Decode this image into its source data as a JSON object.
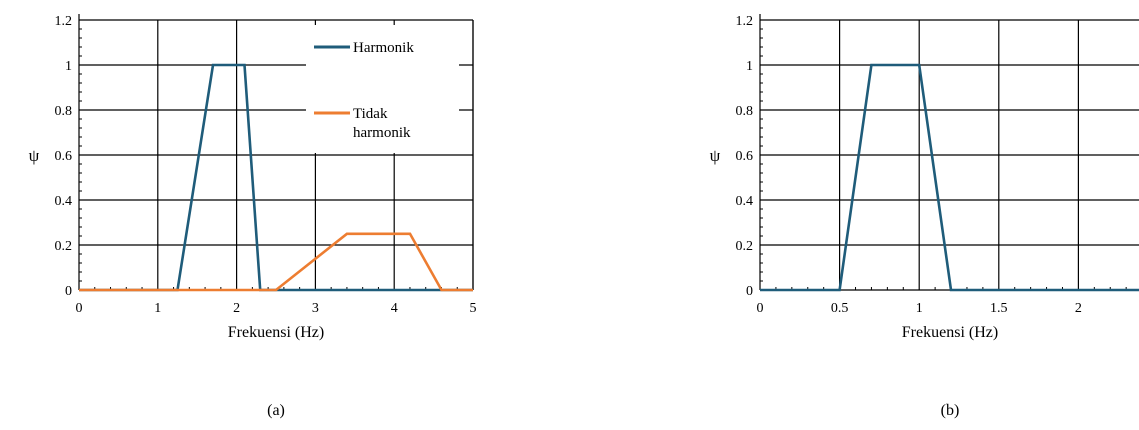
{
  "chart_data": [
    {
      "type": "line",
      "panel_label": "(a)",
      "xlabel": "Frekuensi (Hz)",
      "ylabel": "ψ",
      "xlim": [
        0,
        5
      ],
      "ylim": [
        0,
        1.2
      ],
      "x_ticks": [
        0,
        1,
        2,
        3,
        4,
        5
      ],
      "x_tick_labels": [
        "0",
        "1",
        "2",
        "3",
        "4",
        "5"
      ],
      "y_ticks": [
        0,
        0.2,
        0.4,
        0.6,
        0.8,
        1,
        1.2
      ],
      "y_tick_labels": [
        "0",
        "0.2",
        "0.4",
        "0.6",
        "0.8",
        "1",
        "1.2"
      ],
      "grid": true,
      "legend": "top-right",
      "series": [
        {
          "name": "Harmonik",
          "color": "#1f5c7a",
          "x": [
            0,
            1.25,
            1.7,
            2.1,
            2.3,
            5
          ],
          "y": [
            0,
            0,
            1,
            1,
            0,
            0
          ]
        },
        {
          "name": "Tidak harmonik",
          "legend_lines": [
            "Tidak",
            "harmonik"
          ],
          "color": "#ed7d31",
          "x": [
            0,
            2.5,
            3.4,
            4.2,
            4.6,
            5
          ],
          "y": [
            0,
            0,
            0.25,
            0.25,
            0,
            0
          ]
        }
      ]
    },
    {
      "type": "line",
      "panel_label": "(b)",
      "xlabel": "Frekuensi (Hz)",
      "ylabel": "ψ",
      "xlim": [
        0,
        2.5
      ],
      "ylim": [
        0,
        1.2
      ],
      "x_ticks": [
        0,
        0.5,
        1,
        1.5,
        2
      ],
      "x_tick_labels": [
        "0",
        "0.5",
        "1",
        "1.5",
        "2"
      ],
      "y_ticks": [
        0,
        0.2,
        0.4,
        0.6,
        0.8,
        1,
        1.2
      ],
      "y_tick_labels": [
        "0",
        "0.2",
        "0.4",
        "0.6",
        "0.8",
        "1",
        "1.2"
      ],
      "grid": true,
      "legend": "none",
      "series": [
        {
          "color": "#1f5c7a",
          "x": [
            0,
            0.5,
            0.7,
            1.0,
            1.2,
            2.5
          ],
          "y": [
            0,
            0,
            1,
            1,
            0,
            0
          ]
        }
      ]
    }
  ]
}
